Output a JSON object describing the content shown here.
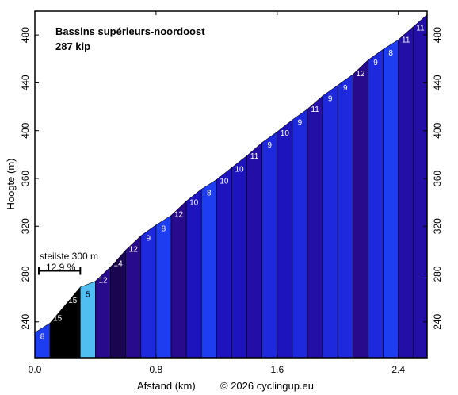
{
  "chart_data": {
    "type": "area",
    "title": "Bassins supérieurs-noordoost",
    "subtitle": "287 kip",
    "xlabel": "Afstand (km)",
    "ylabel": "Hoogte (m)",
    "credit": "© 2026 cyclingup.eu",
    "xlim": [
      0,
      2.59
    ],
    "ylim": [
      210,
      500
    ],
    "x_ticks": [
      0.0,
      0.8,
      1.6,
      2.4
    ],
    "x_tick_labels": [
      "0.0",
      "0.8",
      "1.6",
      "2.4"
    ],
    "y_ticks": [
      240,
      280,
      320,
      360,
      400,
      440,
      480
    ],
    "y_tick_labels": [
      "240",
      "280",
      "320",
      "360",
      "400",
      "440",
      "480"
    ],
    "grid": false,
    "segment_length_km": 0.1,
    "segments": [
      {
        "x0": 0.0,
        "x1": 0.1,
        "y0": 231,
        "y1": 239,
        "gradient": "8",
        "color": "#1e3cf0"
      },
      {
        "x0": 0.1,
        "x1": 0.2,
        "y0": 239,
        "y1": 254,
        "gradient": "15",
        "color": "#000000"
      },
      {
        "x0": 0.2,
        "x1": 0.3,
        "y0": 254,
        "y1": 269,
        "gradient": "15",
        "color": "#000000"
      },
      {
        "x0": 0.3,
        "x1": 0.4,
        "y0": 269,
        "y1": 274,
        "gradient": "5",
        "color": "#50bef0"
      },
      {
        "x0": 0.4,
        "x1": 0.5,
        "y0": 274,
        "y1": 286,
        "gradient": "12",
        "color": "#280a8c"
      },
      {
        "x0": 0.5,
        "x1": 0.6,
        "y0": 286,
        "y1": 300,
        "gradient": "14",
        "color": "#190550"
      },
      {
        "x0": 0.6,
        "x1": 0.7,
        "y0": 300,
        "y1": 312,
        "gradient": "12",
        "color": "#280a8c"
      },
      {
        "x0": 0.7,
        "x1": 0.8,
        "y0": 312,
        "y1": 321,
        "gradient": "9",
        "color": "#1e28dc"
      },
      {
        "x0": 0.8,
        "x1": 0.9,
        "y0": 321,
        "y1": 329,
        "gradient": "8",
        "color": "#1e3cf0"
      },
      {
        "x0": 0.9,
        "x1": 1.0,
        "y0": 329,
        "y1": 341,
        "gradient": "12",
        "color": "#280a8c"
      },
      {
        "x0": 1.0,
        "x1": 1.1,
        "y0": 341,
        "y1": 351,
        "gradient": "10",
        "color": "#1e14be"
      },
      {
        "x0": 1.1,
        "x1": 1.2,
        "y0": 351,
        "y1": 359,
        "gradient": "8",
        "color": "#1e3cf0"
      },
      {
        "x0": 1.2,
        "x1": 1.3,
        "y0": 359,
        "y1": 369,
        "gradient": "10",
        "color": "#1e14be"
      },
      {
        "x0": 1.3,
        "x1": 1.4,
        "y0": 369,
        "y1": 379,
        "gradient": "10",
        "color": "#1e14be"
      },
      {
        "x0": 1.4,
        "x1": 1.5,
        "y0": 379,
        "y1": 390,
        "gradient": "11",
        "color": "#230fa5"
      },
      {
        "x0": 1.5,
        "x1": 1.6,
        "y0": 390,
        "y1": 399,
        "gradient": "9",
        "color": "#1e28dc"
      },
      {
        "x0": 1.6,
        "x1": 1.7,
        "y0": 399,
        "y1": 409,
        "gradient": "10",
        "color": "#1e14be"
      },
      {
        "x0": 1.7,
        "x1": 1.8,
        "y0": 409,
        "y1": 418,
        "gradient": "9",
        "color": "#1e28dc"
      },
      {
        "x0": 1.8,
        "x1": 1.9,
        "y0": 418,
        "y1": 429,
        "gradient": "11",
        "color": "#230fa5"
      },
      {
        "x0": 1.9,
        "x1": 2.0,
        "y0": 429,
        "y1": 438,
        "gradient": "9",
        "color": "#1e28dc"
      },
      {
        "x0": 2.0,
        "x1": 2.1,
        "y0": 438,
        "y1": 447,
        "gradient": "9",
        "color": "#1e28dc"
      },
      {
        "x0": 2.1,
        "x1": 2.2,
        "y0": 447,
        "y1": 459,
        "gradient": "12",
        "color": "#280a8c"
      },
      {
        "x0": 2.2,
        "x1": 2.3,
        "y0": 459,
        "y1": 468,
        "gradient": "9",
        "color": "#1e28dc"
      },
      {
        "x0": 2.3,
        "x1": 2.4,
        "y0": 468,
        "y1": 476,
        "gradient": "8",
        "color": "#1e3cf0"
      },
      {
        "x0": 2.4,
        "x1": 2.5,
        "y0": 476,
        "y1": 487,
        "gradient": "11",
        "color": "#230fa5"
      },
      {
        "x0": 2.5,
        "x1": 2.59,
        "y0": 487,
        "y1": 497,
        "gradient": "11",
        "color": "#230fa5"
      }
    ],
    "steepest": {
      "label": "steilste 300 m",
      "value": "12.9 %",
      "x0": 0.0,
      "x1": 0.3,
      "y": 280
    }
  }
}
